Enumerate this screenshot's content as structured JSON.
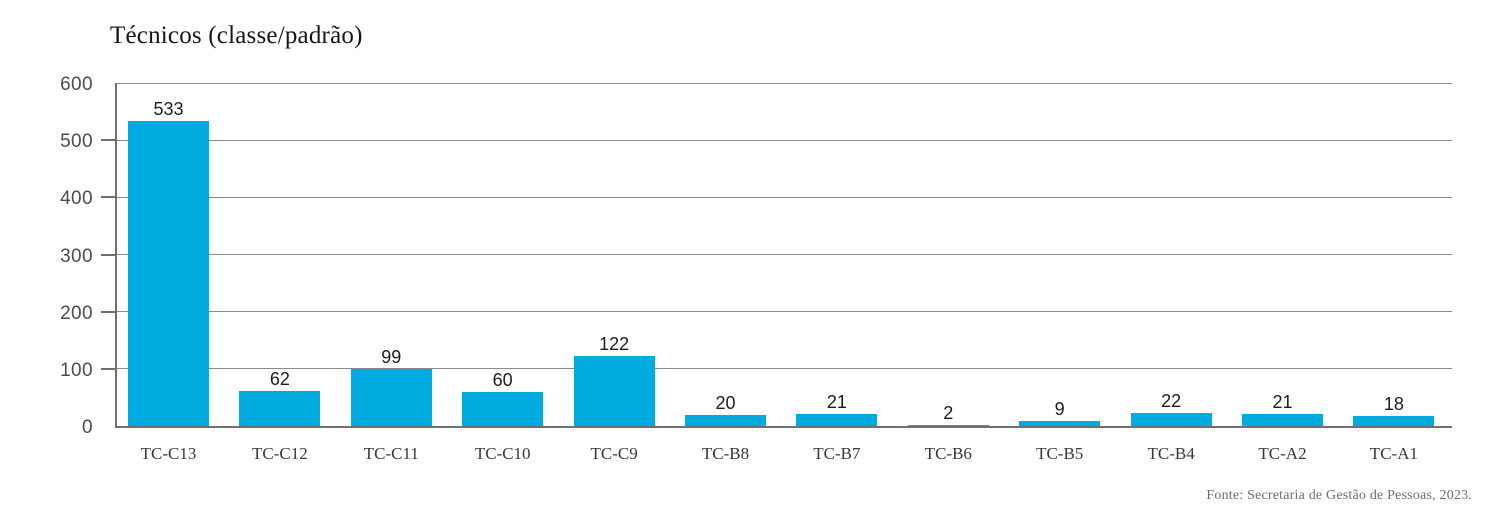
{
  "chart": {
    "title": "Técnicos (classe/padrão)",
    "source": "Fonte: Secretaria de Gestão de Pessoas, 2023."
  },
  "chart_data": {
    "type": "bar",
    "title": "Técnicos (classe/padrão)",
    "categories": [
      "TC-C13",
      "TC-C12",
      "TC-C11",
      "TC-C10",
      "TC-C9",
      "TC-B8",
      "TC-B7",
      "TC-B6",
      "TC-B5",
      "TC-B4",
      "TC-A2",
      "TC-A1"
    ],
    "values": [
      533,
      62,
      99,
      60,
      122,
      20,
      21,
      2,
      9,
      22,
      21,
      18
    ],
    "xlabel": "",
    "ylabel": "",
    "ylim": [
      0,
      600
    ],
    "yticks": [
      0,
      100,
      200,
      300,
      400,
      500,
      600
    ],
    "grid": "horizontal",
    "legend": "none",
    "bar_color": "#00abe0",
    "axis_color": "#6f6f6f",
    "grid_color": "#8a8a8a",
    "source": "Fonte: Secretaria de Gestão de Pessoas, 2023."
  }
}
